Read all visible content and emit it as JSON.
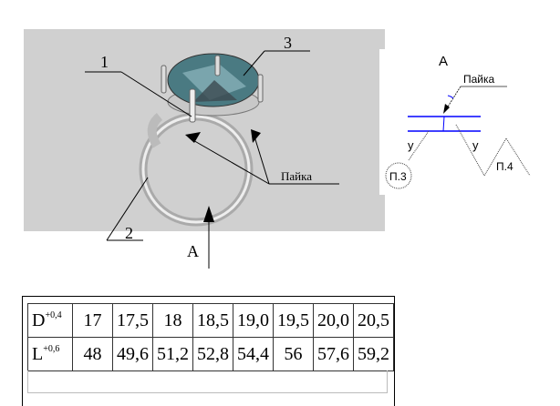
{
  "drawing": {
    "callouts": [
      "1",
      "2",
      "3"
    ],
    "solder_label": "Пайка",
    "view_arrow_label": "A"
  },
  "detail_view": {
    "title": "A",
    "solder_label": "Пайка",
    "weld_marks": [
      "у",
      "у"
    ],
    "ref_circle": "П.3",
    "ref_triangle": "П.4",
    "line_color": "#0000ff"
  },
  "size_table": {
    "rows": [
      {
        "label": "D",
        "tolerance": "+0,4",
        "values": [
          "17",
          "17,5",
          "18",
          "18,5",
          "19,0",
          "19,5",
          "20,0",
          "20,5"
        ]
      },
      {
        "label": "L",
        "tolerance": "+0,6",
        "values": [
          "48",
          "49,6",
          "51,2",
          "52,8",
          "54,4",
          "56",
          "57,6",
          "59,2"
        ]
      }
    ]
  }
}
